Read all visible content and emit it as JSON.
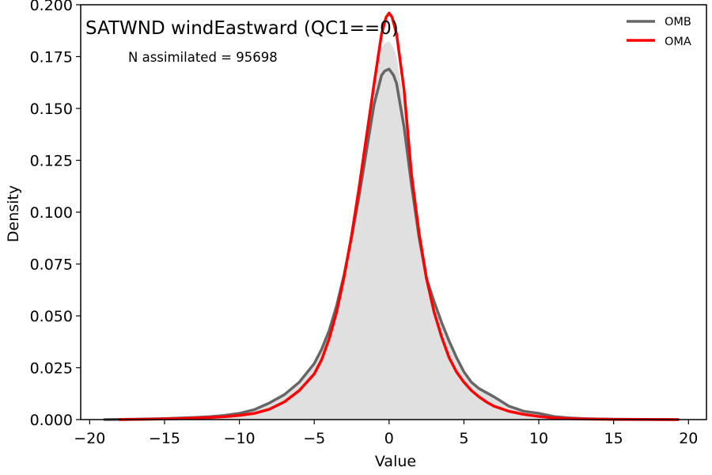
{
  "chart_data": {
    "type": "line",
    "title": "SATWND windEastward (QC1==0)",
    "annotation": "N assimilated = 95698",
    "xlabel": "Value",
    "ylabel": "Density",
    "xlim": [
      -20.6,
      21.2
    ],
    "ylim": [
      0,
      0.2
    ],
    "xticks": [
      -20,
      -15,
      -10,
      -5,
      0,
      5,
      10,
      15,
      20
    ],
    "xtick_labels": [
      "−20",
      "−15",
      "−10",
      "−5",
      "0",
      "5",
      "10",
      "15",
      "20"
    ],
    "yticks": [
      0,
      0.025,
      0.05,
      0.075,
      0.1,
      0.125,
      0.15,
      0.175,
      0.2
    ],
    "ytick_labels": [
      "0.000",
      "0.025",
      "0.050",
      "0.075",
      "0.100",
      "0.125",
      "0.150",
      "0.175",
      "0.200"
    ],
    "grid": false,
    "legend_position": "top-right",
    "histogram_fill": "#e0e0e0",
    "series": [
      {
        "name": "OMB",
        "color": "#666666",
        "x": [
          -19,
          -17,
          -15,
          -13,
          -12,
          -11,
          -10,
          -9,
          -8,
          -7,
          -6,
          -5,
          -4.5,
          -4,
          -3.5,
          -3,
          -2.5,
          -2,
          -1.5,
          -1,
          -0.5,
          -0.3,
          0,
          0.3,
          0.5,
          1,
          1.5,
          2,
          2.5,
          3,
          3.5,
          4,
          4.5,
          5,
          5.5,
          6,
          7,
          8,
          9,
          10,
          11,
          12,
          13,
          14,
          15,
          17,
          19
        ],
        "y": [
          0,
          0.0002,
          0.0005,
          0.001,
          0.0014,
          0.002,
          0.003,
          0.0048,
          0.008,
          0.012,
          0.018,
          0.027,
          0.034,
          0.043,
          0.055,
          0.07,
          0.088,
          0.108,
          0.13,
          0.152,
          0.166,
          0.168,
          0.169,
          0.166,
          0.162,
          0.141,
          0.113,
          0.088,
          0.068,
          0.057,
          0.047,
          0.038,
          0.03,
          0.023,
          0.018,
          0.015,
          0.011,
          0.0065,
          0.004,
          0.003,
          0.0015,
          0.0008,
          0.0005,
          0.0003,
          0.0002,
          0.0001,
          0
        ]
      },
      {
        "name": "OMA",
        "color": "#ff0000",
        "x": [
          -18,
          -16,
          -14,
          -12,
          -11,
          -10,
          -9,
          -8,
          -7,
          -6,
          -5,
          -4.5,
          -4,
          -3.5,
          -3,
          -2.5,
          -2,
          -1.5,
          -1,
          -0.5,
          -0.2,
          0,
          0.2,
          0.5,
          1,
          1.5,
          2,
          2.5,
          3,
          3.5,
          4,
          4.5,
          5,
          5.5,
          6,
          6.5,
          7,
          8,
          9,
          10,
          11,
          12,
          13,
          14,
          15,
          17,
          19.3
        ],
        "y": [
          0,
          0.0002,
          0.0005,
          0.001,
          0.0014,
          0.002,
          0.003,
          0.005,
          0.0085,
          0.014,
          0.022,
          0.029,
          0.039,
          0.052,
          0.069,
          0.089,
          0.112,
          0.137,
          0.162,
          0.186,
          0.194,
          0.196,
          0.194,
          0.186,
          0.159,
          0.118,
          0.09,
          0.068,
          0.052,
          0.04,
          0.03,
          0.023,
          0.018,
          0.014,
          0.011,
          0.0085,
          0.0065,
          0.004,
          0.0025,
          0.0015,
          0.0008,
          0.0005,
          0.0003,
          0.0002,
          0.0001,
          5e-05,
          0
        ]
      }
    ]
  }
}
